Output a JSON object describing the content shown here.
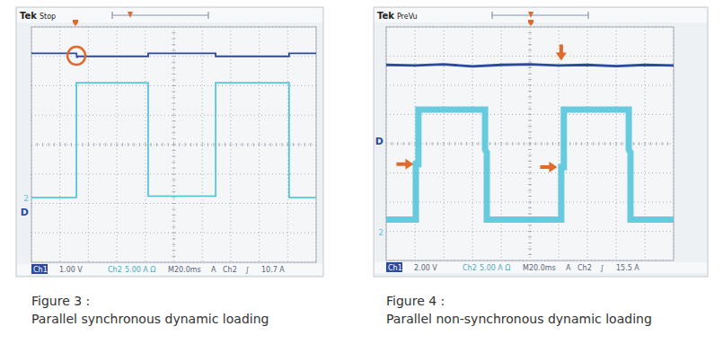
{
  "chart_data": [
    {
      "type": "line",
      "header": {
        "brand": "Tek",
        "status": "Stop"
      },
      "caption": {
        "figure": "Figure 3 :",
        "title": "Parallel synchronous dynamic loading"
      },
      "xlim": [
        0,
        10
      ],
      "ylim": [
        -4,
        4
      ],
      "xticks": [
        0,
        1,
        2,
        3,
        4,
        5,
        6,
        7,
        8,
        9,
        10
      ],
      "yticks": [
        -4,
        -3,
        -2,
        -1,
        0,
        1,
        2,
        3,
        4
      ],
      "grid": true,
      "tick_labels": false,
      "status_bar": [
        "Ch1",
        "1.00 V",
        "Ch2",
        "5.00 A Ω",
        "M20.0ms",
        "A",
        "Ch2",
        "∫",
        "10.7 A"
      ],
      "channel_markers": [
        {
          "label": "2",
          "value": -1.8,
          "color": "#57c7dc"
        },
        {
          "label": "D",
          "value": -2.3,
          "color": "#2b4a9e"
        }
      ],
      "annotations": [
        {
          "shape": "circle",
          "x": 1.58,
          "y": 3.02
        }
      ],
      "series": [
        {
          "color": "#2b4a9e",
          "line_style": "solid",
          "x": [
            0,
            1.58,
            1.6,
            1.62,
            4.1,
            4.1,
            6.47,
            6.47,
            9.05,
            9.05,
            10
          ],
          "values": [
            3.1,
            3.1,
            2.95,
            3.0,
            3.0,
            3.1,
            3.1,
            3.0,
            3.0,
            3.1,
            3.1
          ]
        },
        {
          "color": "#57c7dc",
          "line_style": "solid",
          "x": [
            0,
            1.58,
            1.58,
            4.1,
            4.1,
            6.47,
            6.47,
            9.05,
            9.05,
            10
          ],
          "values": [
            -1.8,
            -1.8,
            2.1,
            2.1,
            -1.75,
            -1.75,
            2.1,
            2.1,
            -1.8,
            -1.8
          ]
        }
      ]
    },
    {
      "type": "line",
      "header": {
        "brand": "Tek",
        "status": "PreVu"
      },
      "caption": {
        "figure": "Figure 4 :",
        "title": "Parallel non-synchronous dynamic loading"
      },
      "xlim": [
        0,
        10
      ],
      "ylim": [
        -4,
        4
      ],
      "xticks": [
        0,
        1,
        2,
        3,
        4,
        5,
        6,
        7,
        8,
        9,
        10
      ],
      "yticks": [
        -4,
        -3,
        -2,
        -1,
        0,
        1,
        2,
        3,
        4
      ],
      "grid": true,
      "tick_labels": false,
      "status_bar": [
        "Ch1",
        "2.00 V",
        "Ch2",
        "5.00 A Ω",
        "M20.0ms",
        "A",
        "Ch2",
        "∫",
        "15.5 A"
      ],
      "channel_markers": [
        {
          "label": "D",
          "value": 0.1,
          "color": "#2b4a9e"
        },
        {
          "label": "2",
          "value": -3.0,
          "color": "#57c7dc"
        }
      ],
      "annotations": [
        {
          "shape": "arrow_down",
          "x": 6.09,
          "y": 2.85
        },
        {
          "shape": "arrow_right",
          "x": 0.95,
          "y": -0.7
        },
        {
          "shape": "arrow_right",
          "x": 5.95,
          "y": -0.8
        }
      ],
      "series": [
        {
          "color": "#2b4a9e",
          "line_style": "solid",
          "x": [
            0,
            1,
            2,
            3,
            4,
            5,
            6,
            7,
            8,
            9,
            10
          ],
          "values": [
            2.7,
            2.68,
            2.72,
            2.65,
            2.7,
            2.72,
            2.68,
            2.7,
            2.66,
            2.7,
            2.68
          ]
        },
        {
          "color": "#57c7dc",
          "line_style": "noisy",
          "x": [
            0,
            1.03,
            1.03,
            1.12,
            1.12,
            3.44,
            3.44,
            3.5,
            3.5,
            6.09,
            6.09,
            6.18,
            6.18,
            8.44,
            8.44,
            8.5,
            8.5,
            10
          ],
          "values": [
            -2.6,
            -2.6,
            -0.7,
            -0.7,
            1.17,
            1.17,
            -0.2,
            -0.3,
            -2.6,
            -2.6,
            -0.8,
            -0.8,
            1.17,
            1.17,
            -0.2,
            -0.3,
            -2.6,
            -2.6
          ]
        }
      ]
    }
  ]
}
